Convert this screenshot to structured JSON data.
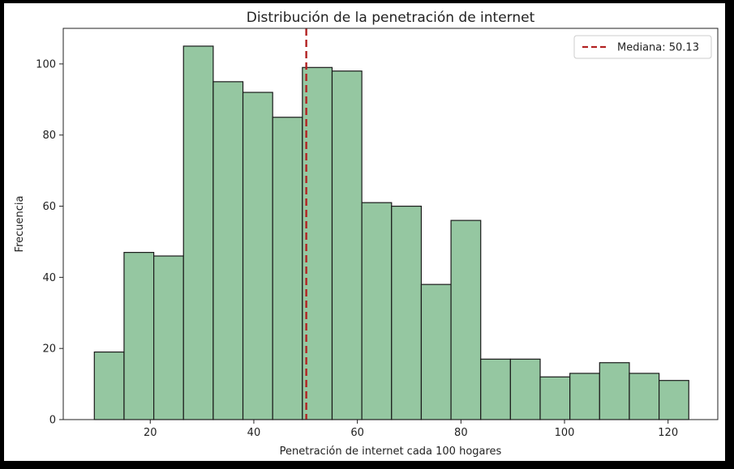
{
  "chart_data": {
    "type": "bar",
    "title": "Distribución de la penetración de internet",
    "xlabel": "Penetración de internet cada 100 hogares",
    "ylabel": "Frecuencia",
    "xlim": [
      3.2,
      129.6
    ],
    "ylim": [
      0,
      110
    ],
    "x_ticks": [
      20,
      40,
      60,
      80,
      100,
      120
    ],
    "y_ticks": [
      0,
      20,
      40,
      60,
      80,
      100
    ],
    "bin_edges": [
      9.2,
      14.94,
      20.68,
      26.42,
      32.16,
      37.9,
      43.64,
      49.38,
      55.12,
      60.86,
      66.6,
      72.34,
      78.08,
      83.82,
      89.56,
      95.3,
      101.04,
      106.78,
      112.52,
      118.26,
      124.0
    ],
    "values": [
      19,
      47,
      46,
      105,
      95,
      92,
      85,
      99,
      98,
      61,
      60,
      38,
      56,
      17,
      17,
      12,
      13,
      16,
      13,
      11
    ],
    "bar_color": "#95c7a1",
    "edge_color": "#1a1a1a",
    "median": {
      "value": 50.13,
      "label": "Mediana: 50.13",
      "color": "#b22222"
    },
    "legend_position": "top-right",
    "grid": false
  }
}
